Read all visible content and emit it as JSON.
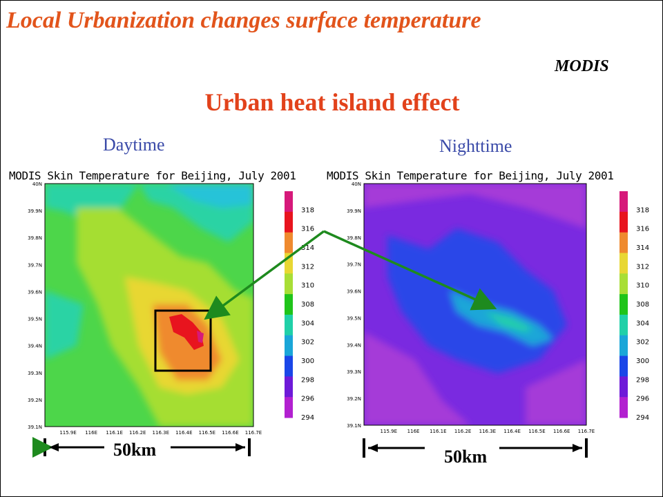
{
  "slide": {
    "title": "Local Urbanization changes surface temperature",
    "source": "MODIS",
    "subtitle": "Urban heat island effect",
    "colors": {
      "title": "#e2541b",
      "subtitle": "#e2421b",
      "panel_label": "#3a4aa8",
      "arrow": "#1e8a1e"
    }
  },
  "chart_data": [
    {
      "type": "heatmap",
      "label": "Daytime",
      "title": "MODIS   Skin Temperature for Beijing, July 2001",
      "x_ticks": [
        "115.9E",
        "116E",
        "116.1E",
        "116.2E",
        "116.3E",
        "116.4E",
        "116.5E",
        "116.6E",
        "116.7E"
      ],
      "y_ticks": [
        "40N",
        "39.9N",
        "39.8N",
        "39.7N",
        "39.6N",
        "39.5N",
        "39.4N",
        "39.3N",
        "39.2N",
        "39.1N"
      ],
      "xlim": [
        115.8,
        116.7
      ],
      "ylim": [
        39.1,
        40.0
      ],
      "colorbar_ticks": [
        318,
        316,
        314,
        312,
        310,
        308,
        304,
        302,
        300,
        298,
        296,
        294
      ],
      "highlight": "urban core box around 116.3E–116.55E, 39.3N–39.55N",
      "scale_bar": "50km"
    },
    {
      "type": "heatmap",
      "label": "Nighttime",
      "title": "MODIS   Skin Temperature for Beijing, July 2001",
      "x_ticks": [
        "115.9E",
        "116E",
        "116.1E",
        "116.2E",
        "116.3E",
        "116.4E",
        "116.5E",
        "116.6E",
        "116.7E"
      ],
      "y_ticks": [
        "40N",
        "39.9N",
        "39.8N",
        "39.7N",
        "39.6N",
        "39.5N",
        "39.4N",
        "39.3N",
        "39.2N",
        "39.1N"
      ],
      "xlim": [
        115.8,
        116.7
      ],
      "ylim": [
        39.1,
        40.0
      ],
      "colorbar_ticks": [
        318,
        316,
        314,
        312,
        310,
        308,
        304,
        302,
        300,
        298,
        296,
        294
      ],
      "scale_bar": "50km"
    }
  ],
  "colorbar": {
    "colors": [
      "#d6197a",
      "#e8141e",
      "#ef8a2e",
      "#e8d733",
      "#a8de36",
      "#1fc41a",
      "#20d0a8",
      "#1aa6d8",
      "#1a46e8",
      "#6e1ad8",
      "#b220d0"
    ]
  }
}
